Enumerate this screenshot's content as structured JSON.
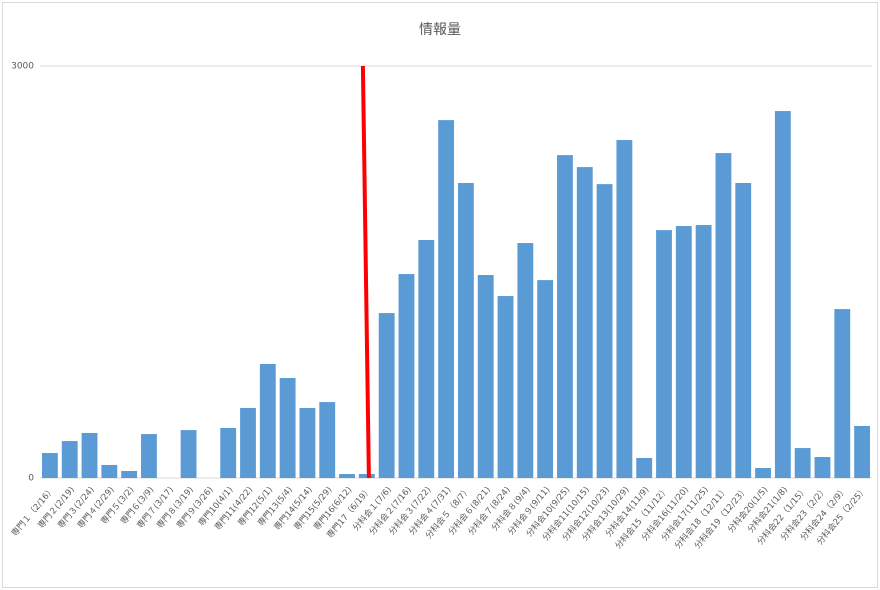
{
  "chart_data": {
    "type": "bar",
    "title": "情報量",
    "categories": [
      "専門１（2/16）",
      "専門２(2/19)",
      "専門３(2/24)",
      "専門４(2/29)",
      "専門５(3/2)",
      "専門６(3/9)",
      "専門７(3/17)",
      "専門８(3/19)",
      "専門９(3/26)",
      "専門10(4/1)",
      "専門11(4/22)",
      "専門12(5/1)",
      "専門13(5/4)",
      "専門14(5/14)",
      "専門15(5/29)",
      "専門16(6/12)",
      "専門17（6/19）",
      "分科会１(7/6)",
      "分科会２(7/16)",
      "分科会３(7/22)",
      "分科会４(7/31)",
      "分科会５（8/7）",
      "分科会６(8/21)",
      "分科会７(8/24)",
      "分科会８(9/4)",
      "分科会９(9/11)",
      "分科会10(9/25)",
      "分科会11(10/15)",
      "分科会12(10/23)",
      "分科会13(10/29)",
      "分科会14(11/9)",
      "分科会15（11/12）",
      "分科会16(11/20)",
      "分科会17(11/25)",
      "分科会18（12/11）",
      "分科会19（12/23）",
      "分科会20(1/5)",
      "分科会21(1/8)",
      "分科会22（1/15）",
      "分科会23（2/2）",
      "分科会24（2/9）",
      "分科会25（2/25）"
    ],
    "values": [
      182,
      269,
      328,
      95,
      51,
      320,
      0,
      349,
      0,
      364,
      510,
      830,
      728,
      510,
      553,
      29,
      29,
      1201,
      1485,
      1733,
      2606,
      2148,
      1478,
      1325,
      1711,
      1441,
      2351,
      2264,
      2140,
      2461,
      146,
      1805,
      1835,
      1842,
      2366,
      2148,
      73,
      2672,
      218,
      153,
      1230,
      379
    ],
    "color": "#5b9bd5",
    "ylim": [
      0,
      3000
    ],
    "yticks": [
      0,
      3000
    ],
    "grid": true
  }
}
